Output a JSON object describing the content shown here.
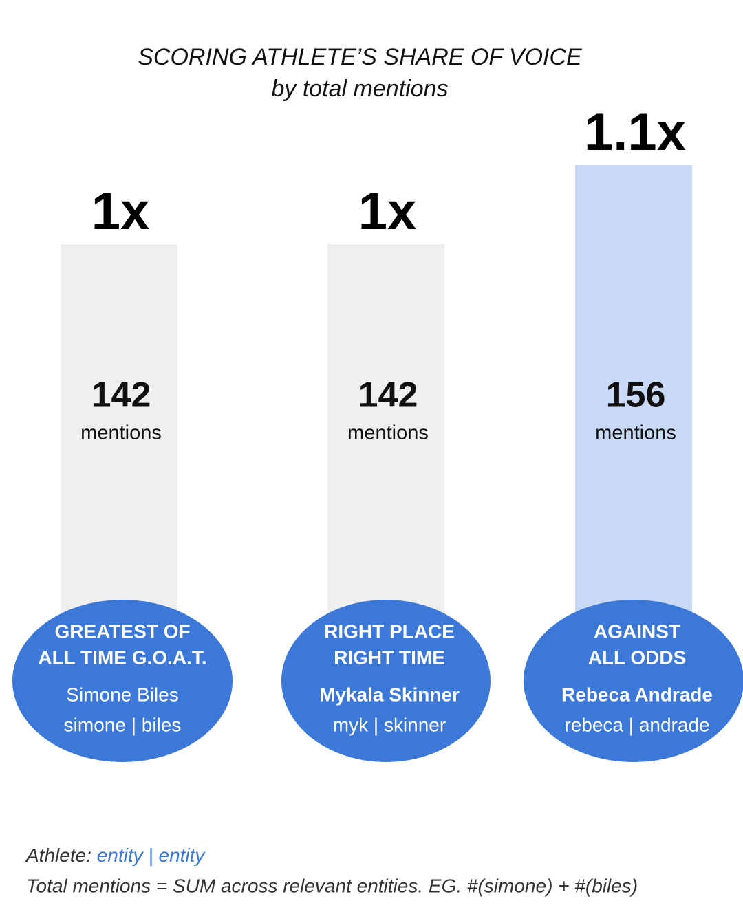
{
  "chart_data": {
    "type": "bar",
    "title": "SCORING ATHLETE’S SHARE OF VOICE",
    "subtitle": "by total mentions",
    "categories": [
      [
        "GREATEST OF",
        "ALL TIME G.O.A.T."
      ],
      [
        "RIGHT PLACE",
        "RIGHT TIME"
      ],
      [
        "AGAINST",
        "ALL ODDS"
      ]
    ],
    "athletes": [
      "Simone Biles",
      "Mykala Skinner",
      "Rebeca Andrade"
    ],
    "entities": [
      "simone | biles",
      "myk | skinner",
      "rebeca | andrade"
    ],
    "values": [
      142,
      142,
      156
    ],
    "value_unit": "mentions",
    "ratio_labels": [
      "1x",
      "1x",
      "1.1x"
    ],
    "colors": [
      "#efefef",
      "#efefef",
      "#c9daf8"
    ],
    "label_color": "#3c78d8",
    "notes": {
      "legend_label": "Athlete:",
      "legend_value": "entity | entity",
      "formula": "Total mentions = SUM across relevant entities. EG. #(simone) + #(biles)"
    }
  }
}
